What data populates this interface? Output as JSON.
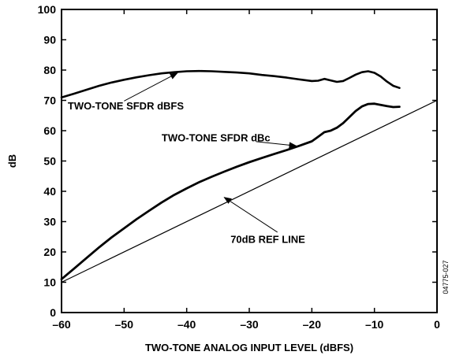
{
  "chart_data": {
    "type": "line",
    "xlabel": "TWO-TONE ANALOG INPUT LEVEL (dBFS)",
    "ylabel": "dB",
    "xlim": [
      -60,
      0
    ],
    "ylim": [
      0,
      100
    ],
    "x_ticks": [
      -60,
      -50,
      -40,
      -30,
      -20,
      -10,
      0
    ],
    "y_ticks": [
      0,
      10,
      20,
      30,
      40,
      50,
      60,
      70,
      80,
      90,
      100
    ],
    "x_tick_labels": [
      "–60",
      "–50",
      "–40",
      "–30",
      "–20",
      "–10",
      "0"
    ],
    "y_tick_labels": [
      "0",
      "10",
      "20",
      "30",
      "40",
      "50",
      "60",
      "70",
      "80",
      "90",
      "100"
    ],
    "grid": false,
    "figure_code": "04775-027",
    "series": [
      {
        "x": [
          -60,
          -58,
          -56,
          -54,
          -52,
          -50,
          -48,
          -46,
          -44,
          -42,
          -40,
          -38,
          -36,
          -34,
          -32,
          -30,
          -28,
          -26,
          -24,
          -22,
          -20,
          -19,
          -18,
          -17,
          -16,
          -15,
          -14,
          -13,
          -12,
          -11,
          -10,
          -9,
          -8,
          -7,
          -6
        ],
        "y": [
          71,
          72.2,
          73.5,
          74.8,
          75.9,
          76.8,
          77.6,
          78.3,
          78.9,
          79.3,
          79.6,
          79.7,
          79.6,
          79.4,
          79.2,
          78.9,
          78.4,
          78,
          77.5,
          76.9,
          76.4,
          76.5,
          77.1,
          76.6,
          76.1,
          76.4,
          77.4,
          78.5,
          79.3,
          79.6,
          79.1,
          77.9,
          76.2,
          74.8,
          74.1
        ]
      },
      {
        "x": [
          -60,
          -58,
          -56,
          -54,
          -52,
          -50,
          -48,
          -46,
          -44,
          -42,
          -40,
          -38,
          -36,
          -34,
          -32,
          -30,
          -28,
          -26,
          -24,
          -22,
          -20,
          -19,
          -18,
          -17,
          -16,
          -15,
          -14,
          -13,
          -12,
          -11,
          -10,
          -9,
          -8,
          -7,
          -6
        ],
        "y": [
          11,
          14.5,
          18,
          21.5,
          24.8,
          27.8,
          30.8,
          33.6,
          36.3,
          38.8,
          41,
          43,
          44.8,
          46.5,
          48.1,
          49.6,
          51,
          52.3,
          53.6,
          55,
          56.5,
          58,
          59.5,
          60,
          61,
          62.5,
          64.5,
          66.5,
          68,
          68.8,
          68.9,
          68.5,
          68.1,
          67.8,
          67.9
        ]
      },
      {
        "x": [
          -60,
          0
        ],
        "y": [
          10,
          70
        ]
      }
    ],
    "annotations": [
      {
        "text": "TWO-TONE SFDR dBFS",
        "label_x": -59,
        "label_y": 67,
        "arrow_from": [
          -50,
          69.8
        ],
        "arrow_to": [
          -41.5,
          79
        ]
      },
      {
        "text": "TWO-TONE SFDR dBc",
        "label_x": -44,
        "label_y": 56.5,
        "arrow_from": [
          -28.9,
          56.4
        ],
        "arrow_to": [
          -22.5,
          55
        ]
      },
      {
        "text": "70dB REF LINE",
        "label_x": -33,
        "label_y": 23,
        "arrow_from": [
          -25.5,
          26.5
        ],
        "arrow_to": [
          -34,
          38
        ]
      }
    ]
  }
}
